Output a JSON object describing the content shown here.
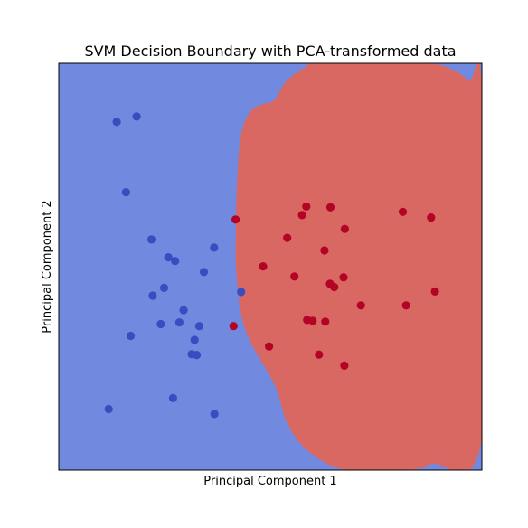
{
  "chart_data": {
    "type": "scatter",
    "title": "SVM Decision Boundary with PCA-transformed data",
    "xlabel": "Principal Component 1",
    "ylabel": "Principal Component 2",
    "xlim": [
      0,
      1
    ],
    "ylim": [
      0,
      1
    ],
    "ticks_shown": false,
    "grid": false,
    "legend": "none",
    "background_region_color": "#7289e0",
    "decision_region_color": "#d96862",
    "decision_region_boundary": [
      [
        0.509,
        0.909
      ],
      [
        0.538,
        0.956
      ],
      [
        0.58,
        0.988
      ],
      [
        0.62,
        1.0
      ],
      [
        0.86,
        1.0
      ],
      [
        0.93,
        0.985
      ],
      [
        0.97,
        0.957
      ],
      [
        1.0,
        0.934
      ],
      [
        1.0,
        0.08
      ],
      [
        0.88,
        0.015
      ],
      [
        0.82,
        0.0
      ],
      [
        0.68,
        0.0
      ],
      [
        0.594,
        0.043
      ],
      [
        0.542,
        0.111
      ],
      [
        0.51,
        0.21
      ],
      [
        0.442,
        0.342
      ],
      [
        0.42,
        0.48
      ],
      [
        0.419,
        0.62
      ],
      [
        0.422,
        0.72
      ],
      [
        0.43,
        0.82
      ],
      [
        0.451,
        0.879
      ],
      [
        0.481,
        0.899
      ]
    ],
    "series": [
      {
        "class_color": "#3b4cc0",
        "x": [
          0.137,
          0.184,
          0.159,
          0.219,
          0.259,
          0.275,
          0.367,
          0.343,
          0.249,
          0.295,
          0.222,
          0.17,
          0.241,
          0.285,
          0.332,
          0.321,
          0.314,
          0.326,
          0.118,
          0.27,
          0.368,
          0.431
        ],
        "y": [
          0.856,
          0.869,
          0.683,
          0.567,
          0.523,
          0.514,
          0.547,
          0.487,
          0.448,
          0.393,
          0.429,
          0.33,
          0.359,
          0.363,
          0.354,
          0.32,
          0.285,
          0.283,
          0.15,
          0.177,
          0.138,
          0.438
        ]
      },
      {
        "class_color": "#b40426",
        "x": [
          0.418,
          0.585,
          0.575,
          0.54,
          0.642,
          0.676,
          0.628,
          0.813,
          0.88,
          0.483,
          0.557,
          0.673,
          0.641,
          0.651,
          0.889,
          0.714,
          0.821,
          0.6,
          0.587,
          0.63,
          0.413,
          0.497,
          0.615,
          0.675
        ],
        "y": [
          0.616,
          0.648,
          0.627,
          0.571,
          0.646,
          0.593,
          0.54,
          0.635,
          0.621,
          0.501,
          0.476,
          0.474,
          0.458,
          0.45,
          0.439,
          0.405,
          0.405,
          0.367,
          0.369,
          0.365,
          0.354,
          0.304,
          0.284,
          0.257
        ]
      }
    ]
  }
}
